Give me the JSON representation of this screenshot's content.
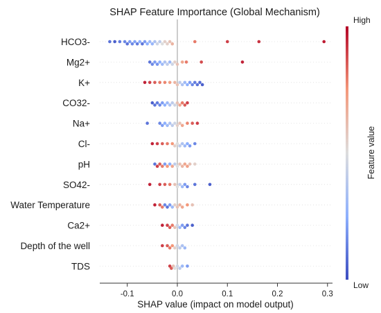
{
  "chart_data": {
    "type": "scatter",
    "subtype": "shap-beeswarm",
    "title": "SHAP Feature Importance (Global Mechanism)",
    "xlabel": "SHAP value (impact on model output)",
    "xlim": [
      -0.155,
      0.31
    ],
    "xticks": [
      -0.1,
      0,
      0.1,
      0.2,
      0.3
    ],
    "xtick_labels": [
      "-0.1",
      "0.0",
      "0.1",
      "0.2",
      "0.3"
    ],
    "zero_line": true,
    "colorbar": {
      "label": "Feature value",
      "high_label": "High",
      "low_label": "Low",
      "colormap": [
        "#3b4cc0",
        "#8db0fe",
        "#dddddd",
        "#f4987a",
        "#b40426"
      ]
    },
    "features": [
      {
        "name": "HCO3-",
        "points": [
          [
            -0.135,
            0.1
          ],
          [
            -0.125,
            0.05
          ],
          [
            -0.115,
            0.12
          ],
          [
            -0.105,
            0.15
          ],
          [
            -0.1,
            0.1
          ],
          [
            -0.095,
            0.2
          ],
          [
            -0.09,
            0.15
          ],
          [
            -0.085,
            0.22
          ],
          [
            -0.08,
            0.12
          ],
          [
            -0.075,
            0.25
          ],
          [
            -0.07,
            0.1
          ],
          [
            -0.065,
            0.2
          ],
          [
            -0.06,
            0.25
          ],
          [
            -0.055,
            0.3
          ],
          [
            -0.05,
            0.28
          ],
          [
            -0.045,
            0.35
          ],
          [
            -0.04,
            0.45
          ],
          [
            -0.035,
            0.4
          ],
          [
            -0.03,
            0.5
          ],
          [
            -0.025,
            0.55
          ],
          [
            -0.02,
            0.55
          ],
          [
            -0.015,
            0.6
          ],
          [
            -0.01,
            0.65
          ],
          [
            0.035,
            0.8
          ],
          [
            0.1,
            0.9
          ],
          [
            0.163,
            0.92
          ],
          [
            0.293,
            0.96
          ]
        ]
      },
      {
        "name": "Mg2+",
        "points": [
          [
            -0.055,
            0.1
          ],
          [
            -0.05,
            0.15
          ],
          [
            -0.045,
            0.2
          ],
          [
            -0.04,
            0.18
          ],
          [
            -0.035,
            0.25
          ],
          [
            -0.03,
            0.3
          ],
          [
            -0.025,
            0.35
          ],
          [
            -0.02,
            0.4
          ],
          [
            -0.015,
            0.3
          ],
          [
            -0.01,
            0.45
          ],
          [
            -0.005,
            0.55
          ],
          [
            0.0,
            0.6
          ],
          [
            0.01,
            0.7
          ],
          [
            0.018,
            0.8
          ],
          [
            0.048,
            0.88
          ],
          [
            0.13,
            0.95
          ]
        ]
      },
      {
        "name": "K+",
        "points": [
          [
            -0.065,
            0.95
          ],
          [
            -0.055,
            0.9
          ],
          [
            -0.045,
            0.85
          ],
          [
            -0.035,
            0.8
          ],
          [
            -0.025,
            0.78
          ],
          [
            -0.015,
            0.72
          ],
          [
            -0.005,
            0.65
          ],
          [
            0.0,
            0.6
          ],
          [
            0.005,
            0.4
          ],
          [
            0.01,
            0.35
          ],
          [
            0.015,
            0.3
          ],
          [
            0.02,
            0.25
          ],
          [
            0.025,
            0.2
          ],
          [
            0.03,
            0.15
          ],
          [
            0.035,
            0.12
          ],
          [
            0.04,
            0.1
          ],
          [
            0.045,
            0.08
          ],
          [
            0.05,
            0.05
          ]
        ]
      },
      {
        "name": "CO32-",
        "points": [
          [
            -0.05,
            0.05
          ],
          [
            -0.045,
            0.1
          ],
          [
            -0.04,
            0.12
          ],
          [
            -0.035,
            0.15
          ],
          [
            -0.03,
            0.2
          ],
          [
            -0.025,
            0.25
          ],
          [
            -0.02,
            0.3
          ],
          [
            -0.015,
            0.35
          ],
          [
            -0.01,
            0.4
          ],
          [
            -0.005,
            0.45
          ],
          [
            0.0,
            0.6
          ],
          [
            0.005,
            0.7
          ],
          [
            0.01,
            0.8
          ],
          [
            0.015,
            0.85
          ],
          [
            0.02,
            0.9
          ]
        ]
      },
      {
        "name": "Na+",
        "points": [
          [
            -0.06,
            0.1
          ],
          [
            -0.035,
            0.15
          ],
          [
            -0.03,
            0.2
          ],
          [
            -0.025,
            0.25
          ],
          [
            -0.02,
            0.3
          ],
          [
            -0.015,
            0.35
          ],
          [
            -0.01,
            0.4
          ],
          [
            -0.005,
            0.45
          ],
          [
            0.0,
            0.55
          ],
          [
            0.005,
            0.6
          ],
          [
            0.01,
            0.7
          ],
          [
            0.02,
            0.78
          ],
          [
            0.03,
            0.85
          ],
          [
            0.04,
            0.9
          ]
        ]
      },
      {
        "name": "Cl-",
        "points": [
          [
            -0.05,
            0.95
          ],
          [
            -0.04,
            0.9
          ],
          [
            -0.03,
            0.85
          ],
          [
            -0.02,
            0.8
          ],
          [
            -0.01,
            0.75
          ],
          [
            -0.005,
            0.55
          ],
          [
            0.0,
            0.5
          ],
          [
            0.005,
            0.4
          ],
          [
            0.01,
            0.35
          ],
          [
            0.015,
            0.3
          ],
          [
            0.02,
            0.25
          ],
          [
            0.025,
            0.2
          ],
          [
            0.035,
            0.15
          ]
        ]
      },
      {
        "name": "pH",
        "points": [
          [
            -0.045,
            0.1
          ],
          [
            -0.04,
            0.9
          ],
          [
            -0.035,
            0.85
          ],
          [
            -0.03,
            0.8
          ],
          [
            -0.025,
            0.2
          ],
          [
            -0.02,
            0.75
          ],
          [
            -0.015,
            0.25
          ],
          [
            -0.01,
            0.7
          ],
          [
            -0.005,
            0.4
          ],
          [
            0.0,
            0.5
          ],
          [
            0.005,
            0.6
          ],
          [
            0.01,
            0.65
          ],
          [
            0.015,
            0.7
          ],
          [
            0.02,
            0.72
          ],
          [
            0.025,
            0.6
          ],
          [
            0.035,
            0.55
          ]
        ]
      },
      {
        "name": "SO42-",
        "points": [
          [
            -0.055,
            0.95
          ],
          [
            -0.035,
            0.9
          ],
          [
            -0.025,
            0.85
          ],
          [
            -0.015,
            0.8
          ],
          [
            -0.005,
            0.6
          ],
          [
            0.0,
            0.5
          ],
          [
            0.005,
            0.4
          ],
          [
            0.01,
            0.3
          ],
          [
            0.015,
            0.2
          ],
          [
            0.02,
            0.15
          ],
          [
            0.035,
            0.1
          ],
          [
            0.065,
            0.05
          ]
        ]
      },
      {
        "name": "Water Temperature",
        "points": [
          [
            -0.045,
            0.95
          ],
          [
            -0.035,
            0.85
          ],
          [
            -0.03,
            0.8
          ],
          [
            -0.025,
            0.15
          ],
          [
            -0.02,
            0.1
          ],
          [
            -0.015,
            0.2
          ],
          [
            -0.01,
            0.3
          ],
          [
            -0.005,
            0.55
          ],
          [
            0.0,
            0.6
          ],
          [
            0.005,
            0.65
          ],
          [
            0.01,
            0.7
          ],
          [
            0.02,
            0.75
          ],
          [
            0.03,
            0.6
          ]
        ]
      },
      {
        "name": "Ca2+",
        "points": [
          [
            -0.03,
            0.95
          ],
          [
            -0.02,
            0.9
          ],
          [
            -0.015,
            0.85
          ],
          [
            -0.01,
            0.8
          ],
          [
            -0.005,
            0.6
          ],
          [
            0.0,
            0.45
          ],
          [
            0.005,
            0.3
          ],
          [
            0.01,
            0.2
          ],
          [
            0.015,
            0.15
          ],
          [
            0.02,
            0.1
          ],
          [
            0.03,
            0.05
          ]
        ]
      },
      {
        "name": "Depth of the well",
        "points": [
          [
            -0.03,
            0.9
          ],
          [
            -0.02,
            0.85
          ],
          [
            -0.015,
            0.8
          ],
          [
            -0.01,
            0.75
          ],
          [
            -0.005,
            0.55
          ],
          [
            0.0,
            0.45
          ],
          [
            0.005,
            0.4
          ],
          [
            0.01,
            0.35
          ],
          [
            0.015,
            0.3
          ]
        ]
      },
      {
        "name": "TDS",
        "points": [
          [
            -0.015,
            0.9
          ],
          [
            -0.012,
            0.85
          ],
          [
            -0.008,
            0.6
          ],
          [
            -0.005,
            0.5
          ],
          [
            0.0,
            0.45
          ],
          [
            0.005,
            0.4
          ],
          [
            0.01,
            0.3
          ],
          [
            0.02,
            0.2
          ]
        ]
      }
    ]
  }
}
